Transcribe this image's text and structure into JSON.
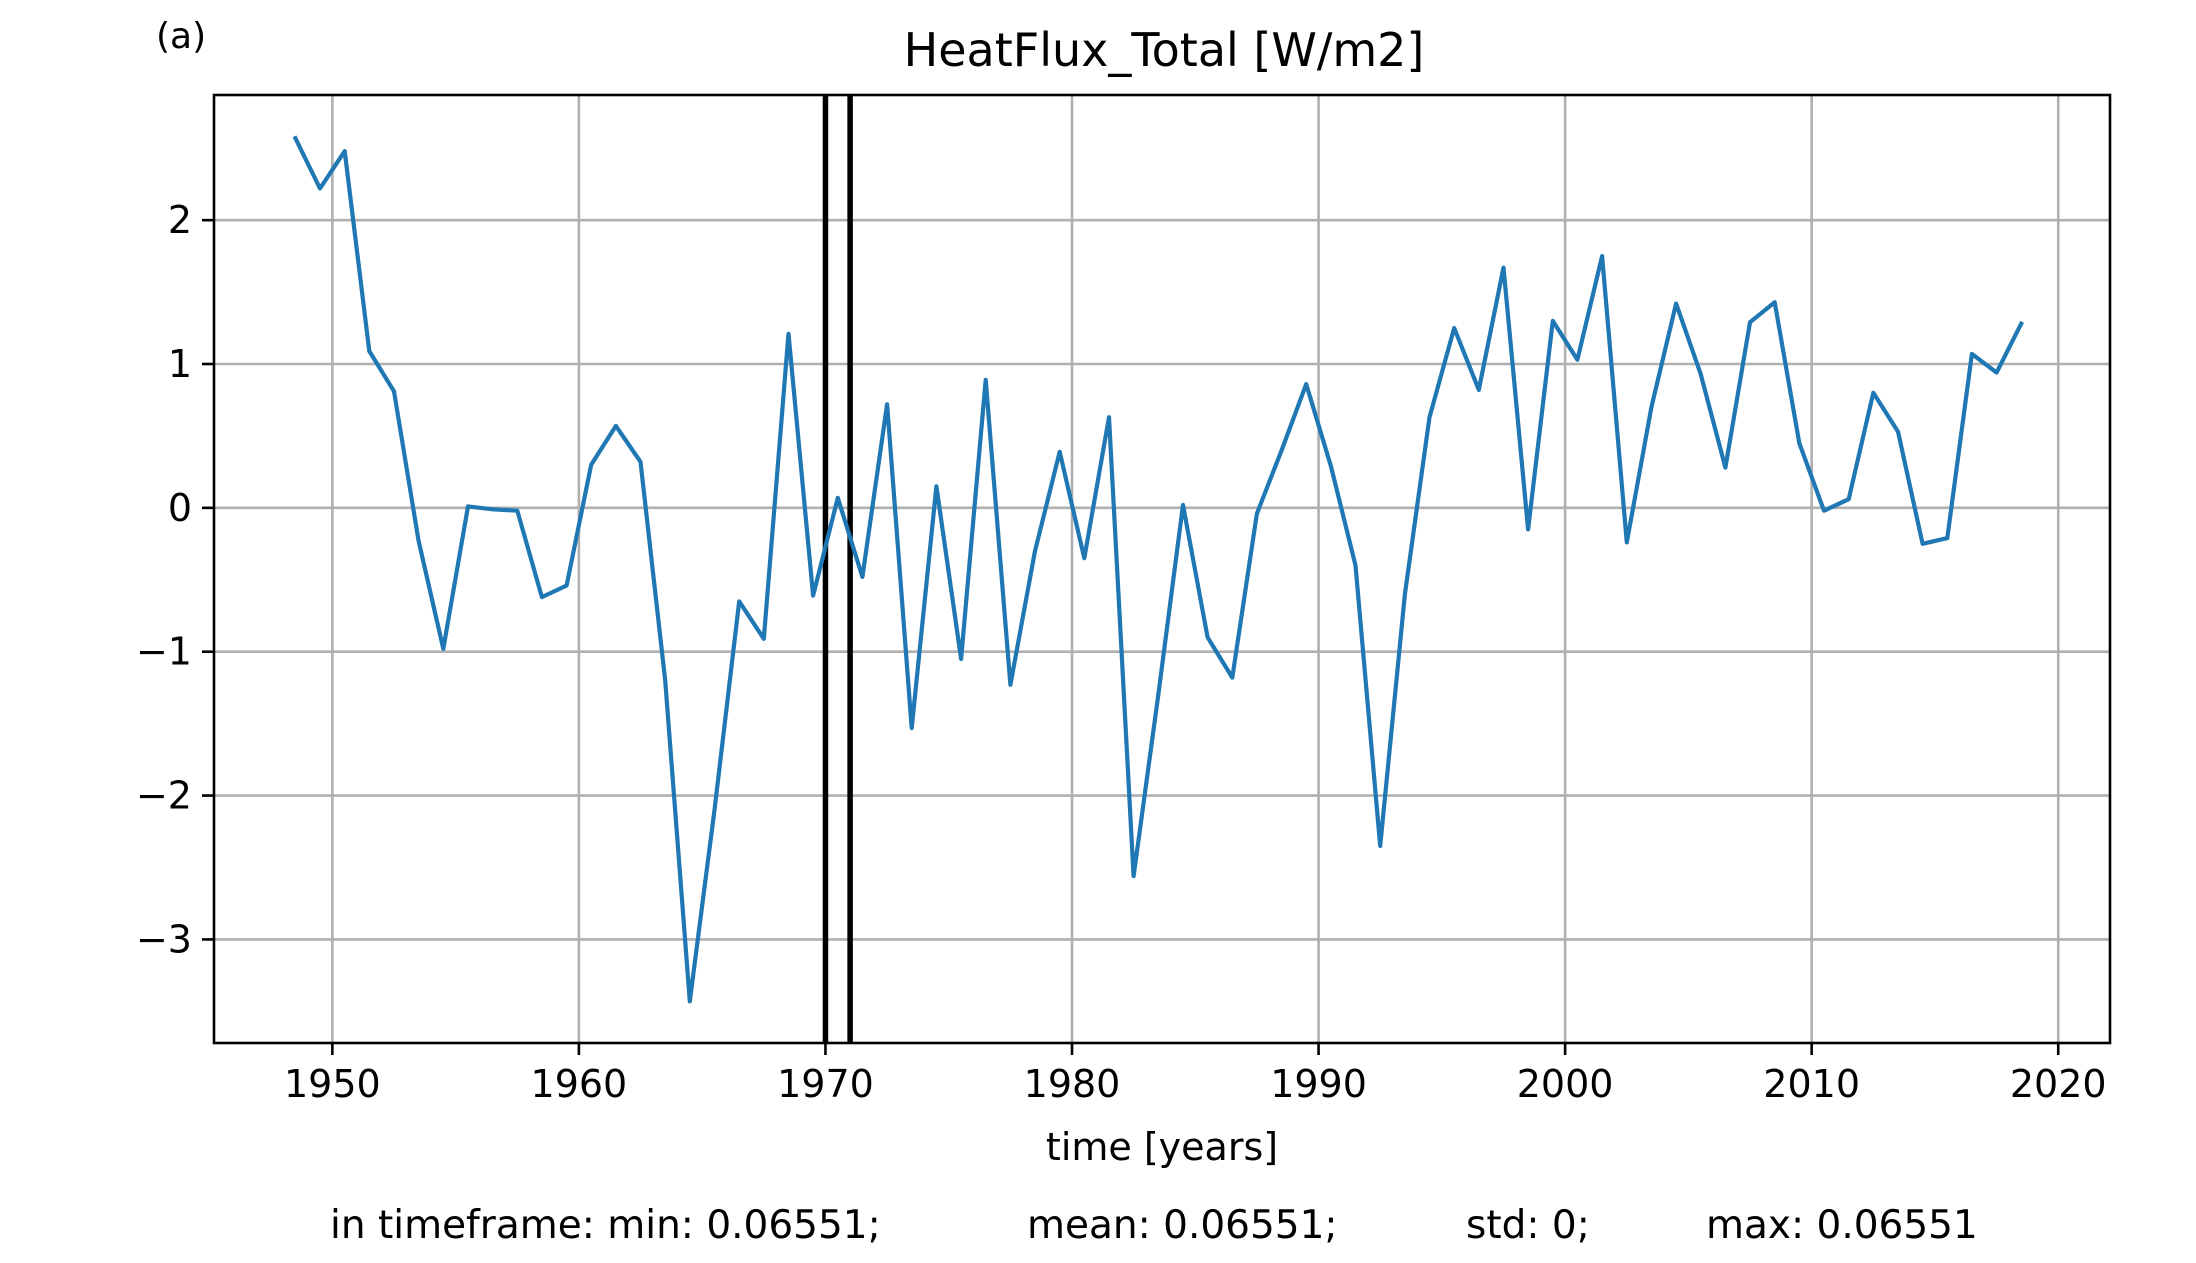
{
  "panel_label": "(a)",
  "stats": {
    "min": "in timeframe: min: 0.06551;",
    "mean": "mean: 0.06551;",
    "std": "std: 0;",
    "max": "max: 0.06551"
  },
  "chart_data": {
    "type": "line",
    "title": "HeatFlux_Total [W/m2]",
    "xlabel": "time [years]",
    "ylabel": "",
    "xlim": [
      1945.2,
      2022.1
    ],
    "ylim": [
      -3.72,
      2.87
    ],
    "xticks": [
      1950,
      1960,
      1970,
      1980,
      1990,
      2000,
      2010,
      2020
    ],
    "yticks": [
      -3,
      -2,
      -1,
      0,
      1,
      2
    ],
    "ytick_labels": [
      "−3",
      "−2",
      "−1",
      "0",
      "1",
      "2"
    ],
    "grid": true,
    "line_color": "#1f77b4",
    "marker_color": "#000000",
    "vertical_markers": [
      1970.0,
      1971.0
    ],
    "series": [
      {
        "x": [
          1948.5,
          1949.5,
          1950.5,
          1951.5,
          1952.5,
          1953.5,
          1954.5,
          1955.5,
          1956.5,
          1957.5,
          1958.5,
          1959.5,
          1960.5,
          1961.5,
          1962.5,
          1963.5,
          1964.5,
          1965.5,
          1966.5,
          1967.5,
          1968.5,
          1969.5,
          1970.5,
          1971.5,
          1972.5,
          1973.5,
          1974.5,
          1975.5,
          1976.5,
          1977.5,
          1978.5,
          1979.5,
          1980.5,
          1981.5,
          1982.5,
          1983.5,
          1984.5,
          1985.5,
          1986.5,
          1987.5,
          1988.5,
          1989.5,
          1990.5,
          1991.5,
          1992.5,
          1993.5,
          1994.5,
          1995.5,
          1996.5,
          1997.5,
          1998.5,
          1999.5,
          2000.5,
          2001.5,
          2002.5,
          2003.5,
          2004.5,
          2005.5,
          2006.5,
          2007.5,
          2008.5,
          2009.5,
          2010.5,
          2011.5,
          2012.5,
          2013.5,
          2014.5,
          2015.5,
          2016.5,
          2017.5,
          2018.5
        ],
        "values": [
          2.57,
          2.22,
          2.48,
          1.09,
          0.81,
          -0.23,
          -0.98,
          0.01,
          -0.01,
          -0.02,
          -0.62,
          -0.54,
          0.3,
          0.57,
          0.32,
          -1.2,
          -3.43,
          -2.1,
          -0.65,
          -0.91,
          1.21,
          -0.61,
          0.07,
          -0.48,
          0.72,
          -1.53,
          0.15,
          -1.05,
          0.89,
          -1.23,
          -0.3,
          0.39,
          -0.35,
          0.63,
          -2.56,
          -1.3,
          0.02,
          -0.9,
          -1.18,
          -0.04,
          0.4,
          0.86,
          0.29,
          -0.4,
          -2.35,
          -0.6,
          0.63,
          1.25,
          0.82,
          1.67,
          -0.15,
          1.3,
          1.03,
          1.75,
          -0.24,
          0.7,
          1.42,
          0.93,
          0.28,
          1.29,
          1.43,
          0.45,
          -0.02,
          0.06,
          0.8,
          0.53,
          -0.25,
          -0.21,
          1.07,
          0.94,
          1.28
        ]
      }
    ]
  }
}
